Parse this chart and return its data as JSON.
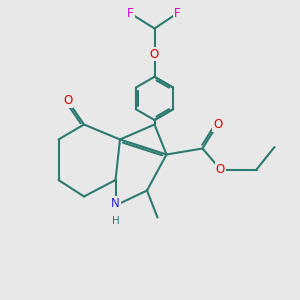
{
  "bg_color": "#e8e8e8",
  "bond_color": "#2d7a70",
  "bond_width": 1.5,
  "sep": 0.07,
  "colors": {
    "O": "#dd0000",
    "N": "#2222cc",
    "F": "#cc00cc",
    "H": "#2d7a70"
  },
  "fs": 8.5,
  "figsize": [
    3.0,
    3.0
  ],
  "dpi": 100,
  "xlim": [
    0,
    10
  ],
  "ylim": [
    0,
    10
  ]
}
